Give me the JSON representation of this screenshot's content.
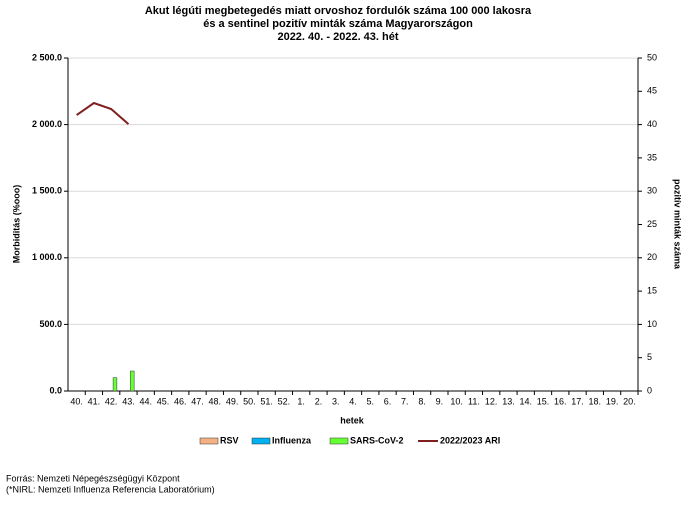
{
  "chart_data": {
    "type": "bar",
    "title": [
      "Akut légúti megbetegedés miatt orvoshoz fordulók száma 100 000 lakosra",
      "és a sentinel pozitív minták száma Magyarországon",
      "2022. 40. - 2022. 43. hét"
    ],
    "x_label": "hetek",
    "y_label": "Morbiditás (%ooo)",
    "y2_label": "pozitív minták száma",
    "categories": [
      "40.",
      "41.",
      "42.",
      "43.",
      "44.",
      "45.",
      "46.",
      "47.",
      "48.",
      "49.",
      "50.",
      "51.",
      "52.",
      "1.",
      "2.",
      "3.",
      "4.",
      "5.",
      "6.",
      "7.",
      "8.",
      "9.",
      "10.",
      "11.",
      "12.",
      "13.",
      "14.",
      "15.",
      "16.",
      "17.",
      "18.",
      "19.",
      "20."
    ],
    "ylim": [
      0,
      2500
    ],
    "yticks": [
      {
        "value": 0,
        "label": "0.0"
      },
      {
        "value": 500,
        "label": "500.0"
      },
      {
        "value": 1000,
        "label": "1 000.0"
      },
      {
        "value": 1500,
        "label": "1 500.0"
      },
      {
        "value": 2000,
        "label": "2 000.0"
      },
      {
        "value": 2500,
        "label": "2 500.0"
      }
    ],
    "y2lim": [
      0,
      50
    ],
    "y2ticks": [
      0,
      5,
      10,
      15,
      20,
      25,
      30,
      35,
      40,
      45,
      50
    ],
    "grid": true,
    "series": [
      {
        "name": "RSV",
        "type": "bar",
        "axis": "y2",
        "color": "#f4b183",
        "values": [
          0,
          0,
          0,
          0,
          null,
          null,
          null,
          null,
          null,
          null,
          null,
          null,
          null,
          null,
          null,
          null,
          null,
          null,
          null,
          null,
          null,
          null,
          null,
          null,
          null,
          null,
          null,
          null,
          null,
          null,
          null,
          null,
          null
        ]
      },
      {
        "name": "Influenza",
        "type": "bar",
        "axis": "y2",
        "color": "#00b0f0",
        "values": [
          0,
          0,
          0,
          0,
          null,
          null,
          null,
          null,
          null,
          null,
          null,
          null,
          null,
          null,
          null,
          null,
          null,
          null,
          null,
          null,
          null,
          null,
          null,
          null,
          null,
          null,
          null,
          null,
          null,
          null,
          null,
          null,
          null
        ]
      },
      {
        "name": "SARS-CoV-2",
        "type": "bar",
        "axis": "y2",
        "color": "#66ff33",
        "values": [
          0,
          0,
          2,
          3,
          null,
          null,
          null,
          null,
          null,
          null,
          null,
          null,
          null,
          null,
          null,
          null,
          null,
          null,
          null,
          null,
          null,
          null,
          null,
          null,
          null,
          null,
          null,
          null,
          null,
          null,
          null,
          null,
          null
        ]
      },
      {
        "name": "2022/2023 ARI",
        "type": "line",
        "color": "#7f1f1f",
        "values": [
          2072,
          2162,
          2117,
          2004,
          null,
          null,
          null,
          null,
          null,
          null,
          null,
          null,
          null,
          null,
          null,
          null,
          null,
          null,
          null,
          null,
          null,
          null,
          null,
          null,
          null,
          null,
          null,
          null,
          null,
          null,
          null,
          null,
          null
        ]
      }
    ],
    "source": [
      "Forrás: Nemzeti Népegészségügyi Központ",
      "(*NIRL: Nemzeti Influenza Referencia Laboratórium)"
    ]
  }
}
